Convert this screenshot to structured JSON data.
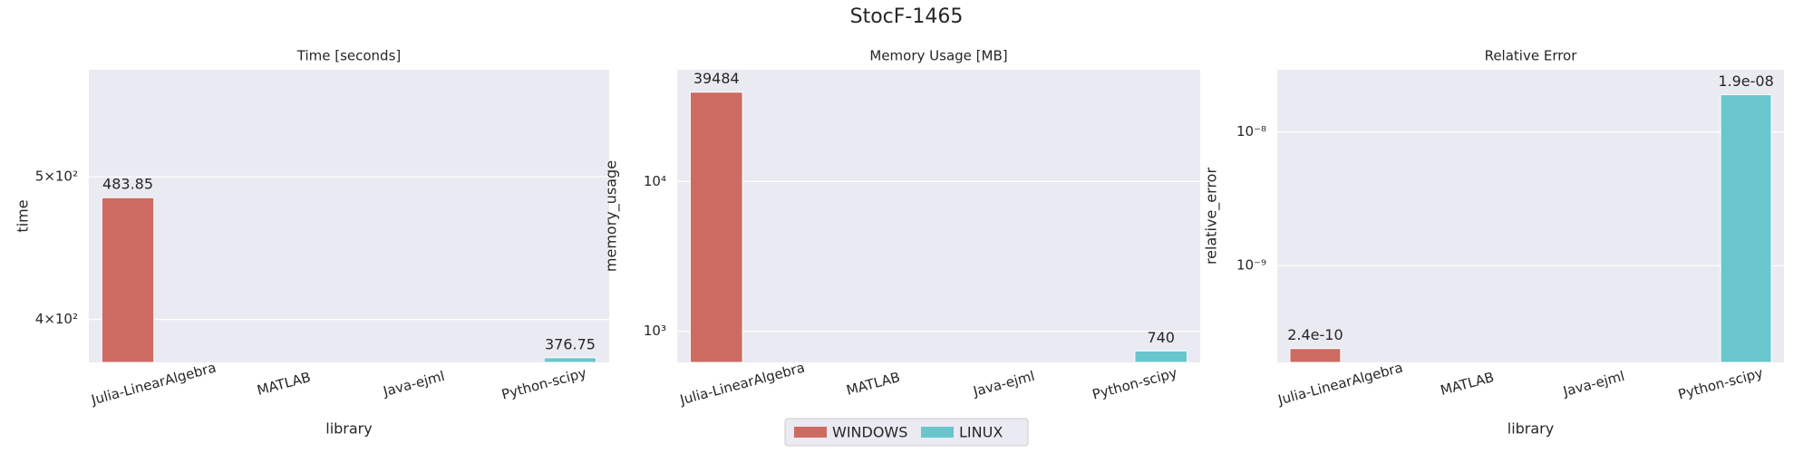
{
  "title": "StocF-1465",
  "chart_data": [
    {
      "type": "bar",
      "title": "Time [seconds]",
      "xlabel": "library",
      "ylabel": "time",
      "log_scale": true,
      "grid": true,
      "categories": [
        "Julia-LinearAlgebra",
        "MATLAB",
        "Java-ejml",
        "Python-scipy"
      ],
      "series": [
        {
          "name": "WINDOWS",
          "color": "#cd6b63",
          "values": [
            483.85,
            null,
            null,
            null
          ]
        },
        {
          "name": "LINUX",
          "color": "#68c6cc",
          "values": [
            null,
            null,
            null,
            376.75
          ]
        }
      ],
      "ylim": [
        374,
        591
      ],
      "yticks": [
        {
          "value": 400,
          "label": "4×10²"
        },
        {
          "value": 500,
          "label": "5×10²"
        }
      ]
    },
    {
      "type": "bar",
      "title": "Memory Usage [MB]",
      "xlabel": "library",
      "ylabel": "memory_usage",
      "log_scale": true,
      "grid": true,
      "categories": [
        "Julia-LinearAlgebra",
        "MATLAB",
        "Java-ejml",
        "Python-scipy"
      ],
      "series": [
        {
          "name": "WINDOWS",
          "color": "#cd6b63",
          "values": [
            39484,
            null,
            null,
            null
          ]
        },
        {
          "name": "LINUX",
          "color": "#68c6cc",
          "values": [
            null,
            null,
            null,
            740
          ]
        }
      ],
      "ylim": [
        620,
        55700
      ],
      "yticks": [
        {
          "value": 1000,
          "label": "10³"
        },
        {
          "value": 10000,
          "label": "10⁴"
        }
      ]
    },
    {
      "type": "bar",
      "title": "Relative Error",
      "xlabel": "library",
      "ylabel": "relative_error",
      "log_scale": true,
      "grid": true,
      "categories": [
        "Julia-LinearAlgebra",
        "MATLAB",
        "Java-ejml",
        "Python-scipy"
      ],
      "series": [
        {
          "name": "WINDOWS",
          "color": "#cd6b63",
          "values": [
            2.4e-10,
            null,
            null,
            null
          ]
        },
        {
          "name": "LINUX",
          "color": "#68c6cc",
          "values": [
            null,
            null,
            null,
            1.9e-08
          ],
          "value_labels": [
            null,
            null,
            null,
            "1.9e-08"
          ]
        }
      ],
      "ylim": [
        1.89e-10,
        2.92e-08
      ],
      "yticks": [
        {
          "value": 1e-09,
          "label": "10⁻⁹"
        },
        {
          "value": 1e-08,
          "label": "10⁻⁸"
        }
      ]
    }
  ]
}
